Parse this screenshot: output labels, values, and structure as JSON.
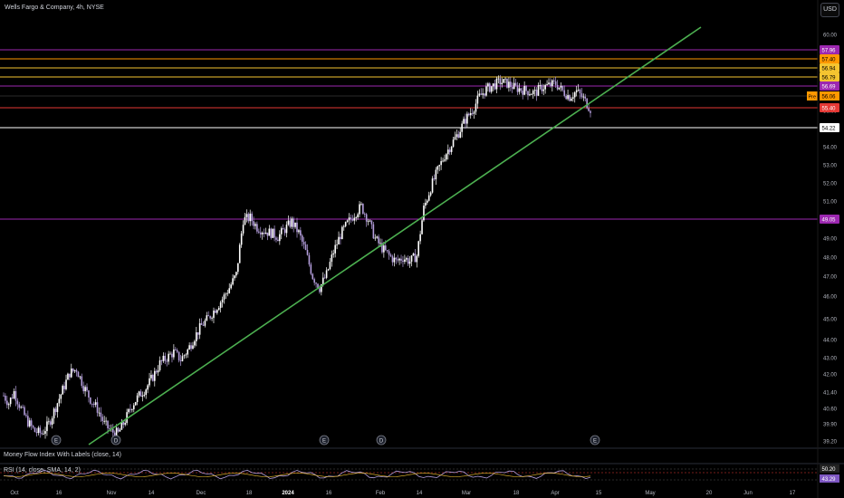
{
  "header": {
    "symbol_title": "Wells Fargo & Company, 4h, NYSE",
    "currency_button": "USD"
  },
  "indicators": {
    "mfi_label": "Money Flow Index With Labels (close, 14)",
    "rsi_label": "RSI (14, close, SMA, 14, 2)",
    "rsi_value_1": "50.20",
    "rsi_value_2": "43.29"
  },
  "colors": {
    "background": "#000000",
    "up_candle": "#ffffff",
    "down_candle": "#b39ddb",
    "trendline": "#4caf50",
    "purple_line": "#9c27b0",
    "yellow_line": "#f4c430",
    "orange_line": "#ff9800",
    "red_line": "#e53935",
    "white_line": "#ffffff"
  },
  "chart_data": {
    "type": "candlestick",
    "title": "Wells Fargo & Company, 4h, NYSE",
    "ylim": [
      38.5,
      60.0
    ],
    "y_ticks": [
      "60.00",
      "59.00",
      "58.00",
      "57.00",
      "56.00",
      "55.00",
      "54.00",
      "53.00",
      "52.00",
      "51.00",
      "50.00",
      "49.00",
      "48.00",
      "47.00",
      "46.00",
      "45.00",
      "44.00",
      "43.00",
      "42.00",
      "41.40",
      "40.60",
      "39.90",
      "39.20",
      "38.50"
    ],
    "x_ticks": [
      "Oct",
      "16",
      "Nov",
      "14",
      "Dec",
      "18",
      "2024",
      "16",
      "Feb",
      "14",
      "Mar",
      "18",
      "Apr",
      "15",
      "May",
      "20",
      "Jun",
      "17"
    ],
    "horizontal_levels": [
      {
        "price": 57.96,
        "label": "57.96",
        "color": "#9c27b0"
      },
      {
        "price": 57.4,
        "label": "57.40",
        "color": "#ff9800"
      },
      {
        "price": 56.94,
        "label": "56.94",
        "color": "#f4c430"
      },
      {
        "price": 56.79,
        "label": "56.79",
        "color": "#f4c430"
      },
      {
        "price": 56.69,
        "label": "56.69",
        "color": "#9c27b0"
      },
      {
        "price": 55.4,
        "label": "55.40",
        "color": "#e53935"
      },
      {
        "price": 54.22,
        "label": "54.22",
        "color": "#ffffff"
      },
      {
        "price": 49.05,
        "label": "49.05",
        "color": "#9c27b0"
      }
    ],
    "pre_market": {
      "tag": "Pre",
      "price": 56.06
    },
    "trendline": {
      "from": {
        "date": "late Oct",
        "price": 38.5
      },
      "to": {
        "date": "mid May",
        "price": 60.3
      }
    },
    "events": [
      {
        "marker": "E",
        "date": "Oct 13"
      },
      {
        "marker": "D",
        "date": "Nov 2"
      },
      {
        "marker": "E",
        "date": "Jan 12"
      },
      {
        "marker": "D",
        "date": "Feb 1"
      },
      {
        "marker": "E",
        "date": "Apr 12"
      }
    ],
    "close_path": [
      [
        0,
        40.9
      ],
      [
        3,
        40.5
      ],
      [
        6,
        41.1
      ],
      [
        10,
        40.2
      ],
      [
        14,
        39.5
      ],
      [
        18,
        39.0
      ],
      [
        22,
        38.9
      ],
      [
        26,
        39.4
      ],
      [
        30,
        40.3
      ],
      [
        34,
        41.2
      ],
      [
        38,
        42.1
      ],
      [
        42,
        42.3
      ],
      [
        46,
        41.4
      ],
      [
        50,
        40.7
      ],
      [
        54,
        40.2
      ],
      [
        58,
        39.4
      ],
      [
        62,
        39.0
      ],
      [
        66,
        38.9
      ],
      [
        70,
        39.6
      ],
      [
        74,
        40.4
      ],
      [
        78,
        40.9
      ],
      [
        82,
        41.3
      ],
      [
        86,
        41.9
      ],
      [
        90,
        42.6
      ],
      [
        94,
        42.9
      ],
      [
        98,
        43.2
      ],
      [
        102,
        42.8
      ],
      [
        106,
        43.3
      ],
      [
        110,
        44.0
      ],
      [
        114,
        44.6
      ],
      [
        118,
        45.0
      ],
      [
        122,
        45.5
      ],
      [
        126,
        46.0
      ],
      [
        130,
        46.6
      ],
      [
        134,
        47.3
      ],
      [
        138,
        50.2
      ],
      [
        142,
        50.3
      ],
      [
        146,
        49.8
      ],
      [
        150,
        49.6
      ],
      [
        154,
        49.5
      ],
      [
        158,
        49.3
      ],
      [
        162,
        49.7
      ],
      [
        166,
        50.1
      ],
      [
        170,
        49.5
      ],
      [
        174,
        48.5
      ],
      [
        178,
        47.2
      ],
      [
        182,
        46.6
      ],
      [
        186,
        47.3
      ],
      [
        190,
        48.5
      ],
      [
        194,
        49.4
      ],
      [
        198,
        50.0
      ],
      [
        202,
        50.5
      ],
      [
        206,
        50.9
      ],
      [
        210,
        50.2
      ],
      [
        214,
        49.2
      ],
      [
        218,
        48.7
      ],
      [
        222,
        48.3
      ],
      [
        226,
        48.0
      ],
      [
        230,
        48.2
      ],
      [
        234,
        48.0
      ],
      [
        238,
        48.3
      ],
      [
        242,
        50.8
      ],
      [
        246,
        51.9
      ],
      [
        250,
        52.8
      ],
      [
        254,
        53.6
      ],
      [
        258,
        54.2
      ],
      [
        262,
        54.8
      ],
      [
        266,
        55.5
      ],
      [
        270,
        56.0
      ],
      [
        274,
        56.7
      ],
      [
        278,
        57.1
      ],
      [
        282,
        57.3
      ],
      [
        286,
        57.5
      ],
      [
        290,
        57.4
      ],
      [
        294,
        57.2
      ],
      [
        298,
        57.1
      ],
      [
        302,
        57.0
      ],
      [
        306,
        56.9
      ],
      [
        310,
        57.2
      ],
      [
        314,
        57.3
      ],
      [
        318,
        57.4
      ],
      [
        322,
        57.0
      ],
      [
        326,
        56.7
      ],
      [
        330,
        57.0
      ],
      [
        334,
        56.6
      ],
      [
        338,
        56.06
      ]
    ]
  }
}
